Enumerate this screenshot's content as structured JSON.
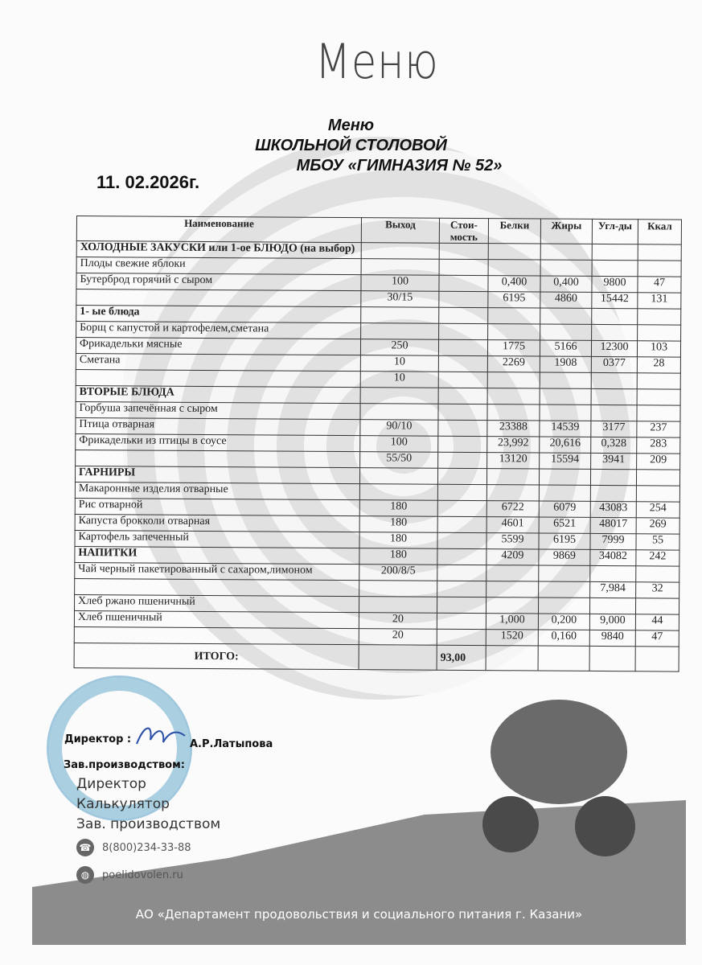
{
  "logo_title": "Меню",
  "heading": {
    "line1": "Меню",
    "line2": "ШКОЛЬНОЙ СТОЛОВОЙ",
    "line3": "МБОУ «ГИМНАЗИЯ № 52»"
  },
  "date": "11. 02.2026г.",
  "table": {
    "headers": [
      "Наименование",
      "Выход",
      "Стои-мость",
      "Белки",
      "Жиры",
      "Угл-ды",
      "Ккал"
    ],
    "rows": [
      {
        "name": "ХОЛОДНЫЕ ЗАКУСКИ или 1-ое БЛЮДО (на выбор)",
        "section": true,
        "out": "",
        "cost": "",
        "b": "",
        "f": "",
        "u": "",
        "k": ""
      },
      {
        "name": "Плоды свежие яблоки",
        "out": "",
        "cost": "",
        "b": "",
        "f": "",
        "u": "",
        "k": ""
      },
      {
        "name": "Бутерброд горячий с сыром",
        "out": "100",
        "cost": "",
        "b": "0,400",
        "f": "0,400",
        "u": "9800",
        "k": "47"
      },
      {
        "name": "",
        "out": "30/15",
        "cost": "",
        "b": "6195",
        "f": "4860",
        "u": "15442",
        "k": "131"
      },
      {
        "name": "1-   ые блюда",
        "section": true,
        "out": "",
        "cost": "",
        "b": "",
        "f": "",
        "u": "",
        "k": ""
      },
      {
        "name": "Борщ с капустой и картофелем,сметана",
        "out": "",
        "cost": "",
        "b": "",
        "f": "",
        "u": "",
        "k": ""
      },
      {
        "name": "Фрикадельки мясные",
        "out": "250",
        "cost": "",
        "b": "1775",
        "f": "5166",
        "u": "12300",
        "k": "103"
      },
      {
        "name": "Сметана",
        "out": "10",
        "cost": "",
        "b": "2269",
        "f": "1908",
        "u": "0377",
        "k": "28"
      },
      {
        "name": "",
        "out": "10",
        "cost": "",
        "b": "",
        "f": "",
        "u": "",
        "k": ""
      },
      {
        "name": "ВТОРЫЕ БЛЮДА",
        "section": true,
        "out": "",
        "cost": "",
        "b": "",
        "f": "",
        "u": "",
        "k": ""
      },
      {
        "name": "Горбуша запечённая с сыром",
        "out": "",
        "cost": "",
        "b": "",
        "f": "",
        "u": "",
        "k": ""
      },
      {
        "name": "Птица отварная",
        "out": "90/10",
        "cost": "",
        "b": "23388",
        "f": "14539",
        "u": "3177",
        "k": "237"
      },
      {
        "name": "Фрикадельки из птицы в соусе",
        "out": "100",
        "cost": "",
        "b": "23,992",
        "f": "20,616",
        "u": "0,328",
        "k": "283"
      },
      {
        "name": "",
        "out": "55/50",
        "cost": "",
        "b": "13120",
        "f": "15594",
        "u": "3941",
        "k": "209"
      },
      {
        "name": "ГАРНИРЫ",
        "section": true,
        "out": "",
        "cost": "",
        "b": "",
        "f": "",
        "u": "",
        "k": ""
      },
      {
        "name": "Макаронные изделия отварные",
        "out": "",
        "cost": "",
        "b": "",
        "f": "",
        "u": "",
        "k": ""
      },
      {
        "name": "Рис отварной",
        "out": "180",
        "cost": "",
        "b": "6722",
        "f": "6079",
        "u": "43083",
        "k": "254"
      },
      {
        "name": "Капуста брокколи отварная",
        "out": "180",
        "cost": "",
        "b": "4601",
        "f": "6521",
        "u": "48017",
        "k": "269"
      },
      {
        "name": "Картофель запеченный",
        "out": "180",
        "cost": "",
        "b": "5599",
        "f": "6195",
        "u": "7999",
        "k": "55"
      },
      {
        "name": "НАПИТКИ",
        "section": true,
        "out": "180",
        "cost": "",
        "b": "4209",
        "f": "9869",
        "u": "34082",
        "k": "242"
      },
      {
        "name": "Чай черный пакетированный с сахаром,лимоном",
        "out": "200/8/5",
        "cost": "",
        "b": "",
        "f": "",
        "u": "",
        "k": ""
      },
      {
        "name": "",
        "out": "",
        "cost": "",
        "b": "",
        "f": "",
        "u": "7,984",
        "k": "32"
      },
      {
        "name": "Хлеб ржано пшеничный",
        "out": "",
        "cost": "",
        "b": "",
        "f": "",
        "u": "",
        "k": ""
      },
      {
        "name": "Хлеб пшеничный",
        "out": "20",
        "cost": "",
        "b": "1,000",
        "f": "0,200",
        "u": "9,000",
        "k": "44"
      },
      {
        "name": "",
        "out": "20",
        "cost": "",
        "b": "1520",
        "f": "0,160",
        "u": "9840",
        "k": "47"
      }
    ],
    "total_label": "ИТОГО:",
    "total_cost": "93,00"
  },
  "signatures": {
    "director_label": "Директор :",
    "director_name": "А.Р.Латыпова",
    "production_label": "Зав.производством:"
  },
  "roles": [
    "Директор",
    "Калькулятор",
    "Зав. производством"
  ],
  "contacts": {
    "phone": "8(800)234-33-88",
    "website": "poelidovolen.ru"
  },
  "footer": "АО «Департамент продовольствия и социального питания г. Казани»",
  "colors": {
    "band": "#8c8c8c",
    "stamp": "#8fbfd8"
  }
}
